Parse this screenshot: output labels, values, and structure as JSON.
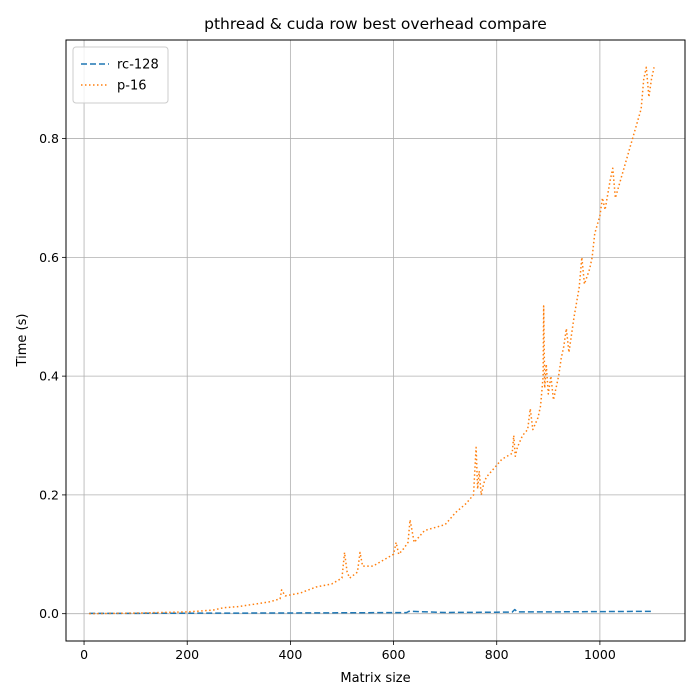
{
  "chart_data": {
    "type": "line",
    "title": "pthread & cuda row best overhead compare",
    "xlabel": "Matrix size",
    "ylabel": "Time (s)",
    "xlim": [
      -35,
      1165
    ],
    "ylim": [
      -0.046,
      0.966
    ],
    "xticks": [
      0,
      200,
      400,
      600,
      800,
      1000
    ],
    "yticks": [
      0.0,
      0.2,
      0.4,
      0.6,
      0.8
    ],
    "grid": true,
    "legend_position": "top-left",
    "series": [
      {
        "name": "rc-128",
        "color": "#1f77b4",
        "style": "dashed",
        "x": [
          10,
          100,
          200,
          300,
          400,
          500,
          600,
          625,
          630,
          700,
          800,
          830,
          835,
          840,
          900,
          1000,
          1100
        ],
        "y": [
          0.0005,
          0.0006,
          0.0008,
          0.001,
          0.0012,
          0.0015,
          0.0018,
          0.0018,
          0.004,
          0.002,
          0.0025,
          0.0027,
          0.007,
          0.003,
          0.003,
          0.0035,
          0.004
        ]
      },
      {
        "name": "p-16",
        "color": "#ff7f0e",
        "style": "dotted",
        "x": [
          10,
          100,
          150,
          200,
          250,
          270,
          300,
          330,
          360,
          380,
          383,
          390,
          420,
          450,
          480,
          500,
          505,
          510,
          515,
          530,
          535,
          540,
          560,
          580,
          600,
          605,
          610,
          620,
          628,
          632,
          640,
          660,
          680,
          700,
          720,
          740,
          755,
          760,
          763,
          766,
          770,
          775,
          780,
          790,
          800,
          810,
          830,
          833,
          836,
          840,
          850,
          860,
          865,
          870,
          875,
          880,
          885,
          890,
          891,
          893,
          896,
          900,
          905,
          910,
          920,
          925,
          930,
          935,
          940,
          950,
          960,
          965,
          970,
          980,
          985,
          990,
          1000,
          1005,
          1010,
          1020,
          1025,
          1030,
          1040,
          1050,
          1060,
          1070,
          1080,
          1085,
          1090,
          1095,
          1100,
          1105
        ],
        "y": [
          0.0,
          0.001,
          0.002,
          0.003,
          0.006,
          0.01,
          0.012,
          0.016,
          0.02,
          0.025,
          0.04,
          0.03,
          0.035,
          0.045,
          0.05,
          0.06,
          0.103,
          0.07,
          0.06,
          0.07,
          0.103,
          0.08,
          0.08,
          0.09,
          0.1,
          0.12,
          0.1,
          0.11,
          0.12,
          0.158,
          0.12,
          0.14,
          0.145,
          0.15,
          0.17,
          0.185,
          0.2,
          0.28,
          0.21,
          0.24,
          0.2,
          0.22,
          0.23,
          0.24,
          0.25,
          0.26,
          0.27,
          0.3,
          0.265,
          0.28,
          0.3,
          0.31,
          0.345,
          0.31,
          0.32,
          0.33,
          0.35,
          0.4,
          0.518,
          0.38,
          0.42,
          0.37,
          0.4,
          0.36,
          0.4,
          0.43,
          0.45,
          0.48,
          0.44,
          0.5,
          0.55,
          0.6,
          0.555,
          0.58,
          0.6,
          0.64,
          0.67,
          0.7,
          0.68,
          0.73,
          0.75,
          0.7,
          0.73,
          0.76,
          0.79,
          0.82,
          0.85,
          0.9,
          0.92,
          0.87,
          0.9,
          0.92
        ]
      }
    ]
  }
}
